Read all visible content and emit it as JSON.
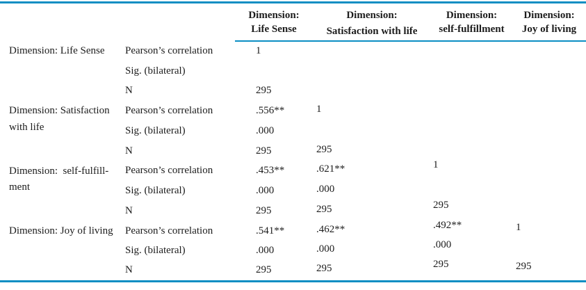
{
  "colors": {
    "accent_rule": "#0b8ec3",
    "text": "#1c1c1c",
    "background": "#ffffff"
  },
  "table": {
    "columns": [
      {
        "line1": "Dimension:",
        "line2": "Life Sense"
      },
      {
        "line1": "Dimension:",
        "line2": "Satisfaction with life"
      },
      {
        "line1": "Dimension:",
        "line2": "self-fulfillment"
      },
      {
        "line1": "Dimension:",
        "line2": "Joy of living"
      }
    ],
    "stat_labels": [
      "Pearson’s correlation",
      "Sig. (bilateral)",
      "N"
    ],
    "groups": [
      {
        "label_lines": [
          "Dimension: Life Sense"
        ],
        "pearson": [
          "1",
          "",
          "",
          ""
        ],
        "sig": [
          "",
          "",
          "",
          ""
        ],
        "n": [
          "295",
          "",
          "",
          ""
        ]
      },
      {
        "label_lines": [
          "Dimension: Satisfaction",
          "with life"
        ],
        "pearson": [
          ".556**",
          "1",
          "",
          ""
        ],
        "sig": [
          ".000",
          "",
          "",
          ""
        ],
        "n": [
          "295",
          "295",
          "",
          ""
        ]
      },
      {
        "label_lines": [
          "Dimension:  self-fulfill-",
          "ment"
        ],
        "pearson": [
          ".453**",
          ".621**",
          "1",
          ""
        ],
        "sig": [
          ".000",
          ".000",
          "",
          ""
        ],
        "n": [
          "295",
          "295",
          "295",
          ""
        ]
      },
      {
        "label_lines": [
          "Dimension: Joy of living"
        ],
        "pearson": [
          ".541**",
          ".462**",
          ".492**",
          "1"
        ],
        "sig": [
          ".000",
          ".000",
          ".000",
          ""
        ],
        "n": [
          "295",
          "295",
          "295",
          "295"
        ]
      }
    ]
  }
}
